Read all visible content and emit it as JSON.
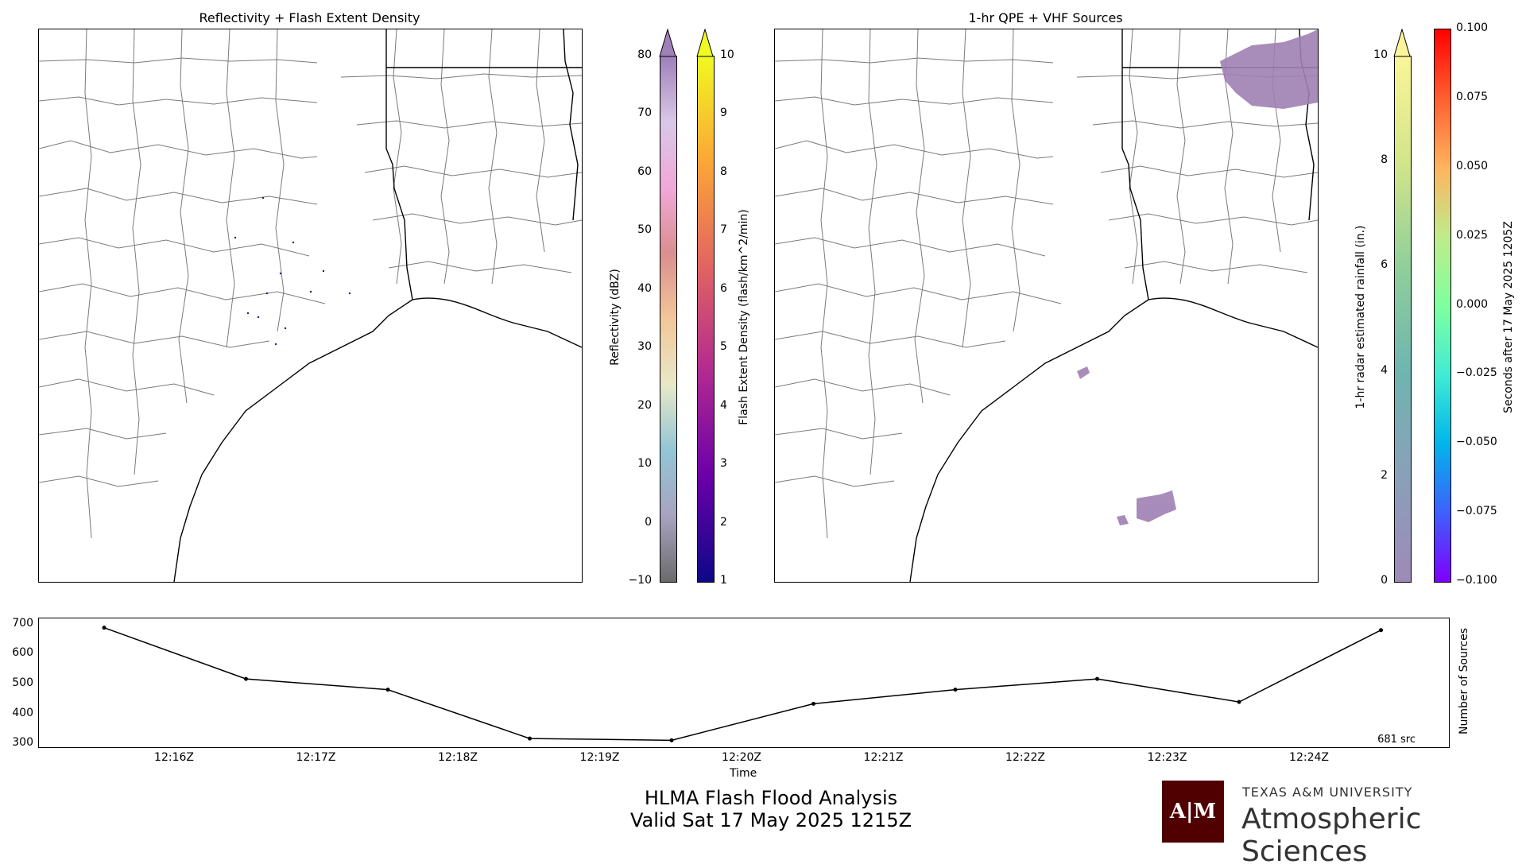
{
  "panels": {
    "left_title": "Reflectivity + Flash Extent Density",
    "right_title": "1-hr QPE + VHF Sources"
  },
  "colorbars": {
    "reflectivity": {
      "label": "Reflectivity (dBZ)",
      "ticks": [
        "80",
        "70",
        "60",
        "50",
        "40",
        "30",
        "20",
        "10",
        "0",
        "−10"
      ],
      "range": [
        -10,
        80
      ],
      "colors": [
        "#6b6b6b",
        "#a8a3c0",
        "#93c5d6",
        "#e8e8c8",
        "#f2c79a",
        "#d98f8f",
        "#f0a8d8",
        "#d8c8e8",
        "#a080b8"
      ]
    },
    "flash_density": {
      "label": "Flash Extent Density (flash/km^2/min)",
      "ticks": [
        "10",
        "9",
        "8",
        "7",
        "6",
        "5",
        "4",
        "3",
        "2",
        "1"
      ],
      "range": [
        1,
        10
      ],
      "colors": [
        "#0d0887",
        "#6a00a8",
        "#b12a90",
        "#e16462",
        "#fca636",
        "#f0f921"
      ]
    },
    "qpe": {
      "label": "1-hr radar estimated rainfall (in.)",
      "ticks": [
        "10",
        "8",
        "6",
        "4",
        "2",
        "0"
      ],
      "range": [
        0,
        10
      ],
      "colors": [
        "#9e8ab8",
        "#8aa0b8",
        "#6fb5b0",
        "#90cf9a",
        "#d4e58a",
        "#faf59a"
      ]
    },
    "seconds": {
      "label": "Seconds after 17 May 2025 1205Z",
      "ticks": [
        "0.100",
        "0.075",
        "0.050",
        "0.025",
        "0.000",
        "−0.025",
        "−0.050",
        "−0.075",
        "−0.100"
      ],
      "range": [
        -0.1,
        0.1
      ],
      "colors": [
        "#7f00ff",
        "#3f60fb",
        "#00b5eb",
        "#40ecd4",
        "#80ff9e",
        "#c0eb8b",
        "#ffb360",
        "#ff5f30",
        "#ff0000"
      ]
    }
  },
  "chart_data": {
    "type": "line",
    "x": [
      "12:15:30Z",
      "12:16:30Z",
      "12:17:30Z",
      "12:18:30Z",
      "12:19:30Z",
      "12:20:30Z",
      "12:21:30Z",
      "12:22:30Z",
      "12:23:30Z",
      "12:24:30Z"
    ],
    "values": [
      689,
      518,
      482,
      319,
      313,
      435,
      482,
      518,
      441,
      681
    ],
    "xlabel": "Time",
    "ylabel": "Number of Sources",
    "xticks": [
      "12:16Z",
      "12:17Z",
      "12:18Z",
      "12:19Z",
      "12:20Z",
      "12:21Z",
      "12:22Z",
      "12:23Z",
      "12:24Z"
    ],
    "yticks": [
      "700",
      "600",
      "500",
      "400",
      "300"
    ],
    "ylim": [
      290,
      720
    ],
    "annotation": "681 src"
  },
  "footer": {
    "line1": "HLMA Flash Flood Analysis",
    "line2": "Valid Sat 17 May 2025 1215Z",
    "logo_text": "A|M",
    "university": "TEXAS A&M UNIVERSITY",
    "department": "Atmospheric Sciences",
    "brand_color": "#500000"
  }
}
